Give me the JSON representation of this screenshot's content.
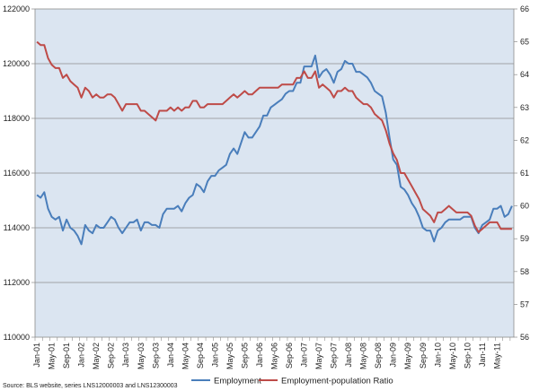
{
  "chart_data": {
    "type": "line",
    "title": "",
    "xlabel": "",
    "ylabel": "",
    "y2label": "",
    "ylim": [
      110000,
      122000
    ],
    "y2lim": [
      56,
      66
    ],
    "grid": "horizontal",
    "legend": "bottom-center",
    "source": "Source: BLS website, series LNS12000003 and LNS12300003",
    "x_tick_labels": [
      "Jan-01",
      "May-01",
      "Sep-01",
      "Jan-02",
      "May-02",
      "Sep-02",
      "Jan-03",
      "May-03",
      "Sep-03",
      "Jan-04",
      "May-04",
      "Sep-04",
      "Jan-05",
      "May-05",
      "Sep-05",
      "Jan-06",
      "May-06",
      "Sep-06",
      "Jan-07",
      "May-07",
      "Sep-07",
      "Jan-08",
      "May-08",
      "Sep-08",
      "Jan-09",
      "May-09",
      "Sep-09",
      "Jan-10",
      "May-10",
      "Sep-10",
      "Jan-11",
      "May-11"
    ],
    "y_ticks": [
      110000,
      112000,
      114000,
      116000,
      118000,
      120000,
      122000
    ],
    "y2_ticks": [
      56,
      57,
      58,
      59,
      60,
      61,
      62,
      63,
      64,
      65,
      66
    ],
    "start": "Jan-01",
    "series": [
      {
        "name": "Employment",
        "axis": "left",
        "color": "#4a7ebb",
        "values": [
          115200,
          115100,
          115300,
          114700,
          114400,
          114300,
          114400,
          113900,
          114300,
          114000,
          113900,
          113700,
          113400,
          114100,
          113900,
          113800,
          114100,
          114000,
          114000,
          114200,
          114400,
          114300,
          114000,
          113800,
          114000,
          114200,
          114200,
          114300,
          113900,
          114200,
          114200,
          114100,
          114100,
          114000,
          114500,
          114700,
          114700,
          114700,
          114800,
          114600,
          114900,
          115100,
          115200,
          115600,
          115500,
          115300,
          115700,
          115900,
          115900,
          116100,
          116200,
          116300,
          116700,
          116900,
          116700,
          117100,
          117500,
          117300,
          117300,
          117500,
          117700,
          118100,
          118100,
          118400,
          118500,
          118600,
          118700,
          118900,
          119000,
          119000,
          119300,
          119300,
          119900,
          119900,
          119900,
          120300,
          119500,
          119700,
          119800,
          119600,
          119300,
          119700,
          119800,
          120100,
          120000,
          120000,
          119700,
          119700,
          119600,
          119500,
          119300,
          119000,
          118900,
          118800,
          118200,
          117300,
          116500,
          116300,
          115500,
          115400,
          115200,
          114900,
          114700,
          114400,
          114000,
          113900,
          113900,
          113500,
          113900,
          114000,
          114200,
          114300,
          114300,
          114300,
          114300,
          114400,
          114400,
          114400,
          114000,
          113800,
          114100,
          114200,
          114300,
          114700,
          114700,
          114800,
          114400,
          114500,
          114800
        ]
      },
      {
        "name": "Employment-population Ratio",
        "axis": "right",
        "color": "#be4b48",
        "values": [
          65.0,
          64.9,
          64.9,
          64.5,
          64.3,
          64.2,
          64.2,
          63.9,
          64.0,
          63.8,
          63.7,
          63.6,
          63.3,
          63.6,
          63.5,
          63.3,
          63.4,
          63.3,
          63.3,
          63.4,
          63.4,
          63.3,
          63.1,
          62.9,
          63.1,
          63.1,
          63.1,
          63.1,
          62.9,
          62.9,
          62.8,
          62.7,
          62.6,
          62.9,
          62.9,
          62.9,
          63.0,
          62.9,
          63.0,
          62.9,
          63.0,
          63.0,
          63.2,
          63.2,
          63.0,
          63.0,
          63.1,
          63.1,
          63.1,
          63.1,
          63.1,
          63.2,
          63.3,
          63.4,
          63.3,
          63.4,
          63.5,
          63.4,
          63.4,
          63.5,
          63.6,
          63.6,
          63.6,
          63.6,
          63.6,
          63.6,
          63.7,
          63.7,
          63.7,
          63.7,
          63.9,
          63.9,
          64.1,
          63.9,
          63.9,
          64.1,
          63.6,
          63.7,
          63.6,
          63.5,
          63.3,
          63.5,
          63.5,
          63.6,
          63.5,
          63.5,
          63.3,
          63.2,
          63.1,
          63.1,
          63.0,
          62.8,
          62.7,
          62.6,
          62.3,
          61.9,
          61.6,
          61.4,
          61.0,
          61.0,
          60.8,
          60.6,
          60.4,
          60.2,
          59.9,
          59.8,
          59.7,
          59.5,
          59.8,
          59.8,
          59.9,
          60.0,
          59.9,
          59.8,
          59.8,
          59.8,
          59.8,
          59.7,
          59.4,
          59.2,
          59.3,
          59.4,
          59.5,
          59.5,
          59.5,
          59.3,
          59.3,
          59.3,
          59.3
        ]
      }
    ]
  }
}
